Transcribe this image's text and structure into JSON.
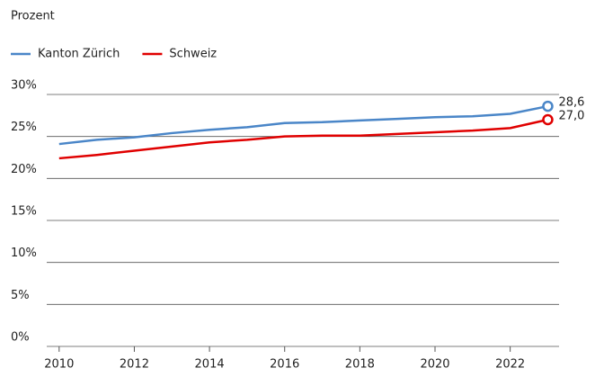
{
  "chart_data": {
    "type": "line",
    "y_axis_label": "Prozent",
    "x": [
      2010,
      2011,
      2012,
      2013,
      2014,
      2015,
      2016,
      2017,
      2018,
      2019,
      2020,
      2021,
      2022,
      2023
    ],
    "series": [
      {
        "name": "Kanton Zürich",
        "color": "#4a86c8",
        "values": [
          24.1,
          24.6,
          24.9,
          25.4,
          25.8,
          26.1,
          26.6,
          26.7,
          26.9,
          27.1,
          27.3,
          27.4,
          27.7,
          28.6
        ],
        "value_labels": [
          null,
          null,
          null,
          null,
          null,
          null,
          null,
          null,
          null,
          null,
          null,
          null,
          null,
          "28,6"
        ]
      },
      {
        "name": "Schweiz",
        "color": "#e00000",
        "values": [
          22.4,
          22.8,
          23.3,
          23.8,
          24.3,
          24.6,
          25.0,
          25.1,
          25.1,
          25.3,
          25.5,
          25.7,
          26.0,
          27.0
        ],
        "value_labels": [
          null,
          null,
          null,
          null,
          null,
          null,
          null,
          null,
          null,
          null,
          null,
          null,
          null,
          "27,0"
        ]
      }
    ],
    "xlim": [
      2009.67,
      2023.3
    ],
    "xticks": [
      2010,
      2012,
      2014,
      2016,
      2018,
      2020,
      2022
    ],
    "ylim": [
      0,
      30
    ],
    "yticks": [
      {
        "value": 0,
        "label": "0%"
      },
      {
        "value": 5,
        "label": "5%"
      },
      {
        "value": 10,
        "label": "10%"
      },
      {
        "value": 15,
        "label": "15%"
      },
      {
        "value": 20,
        "label": "20%"
      },
      {
        "value": 25,
        "label": "25%"
      },
      {
        "value": 30,
        "label": "30%"
      }
    ],
    "grid": true,
    "legend": "top-left"
  }
}
